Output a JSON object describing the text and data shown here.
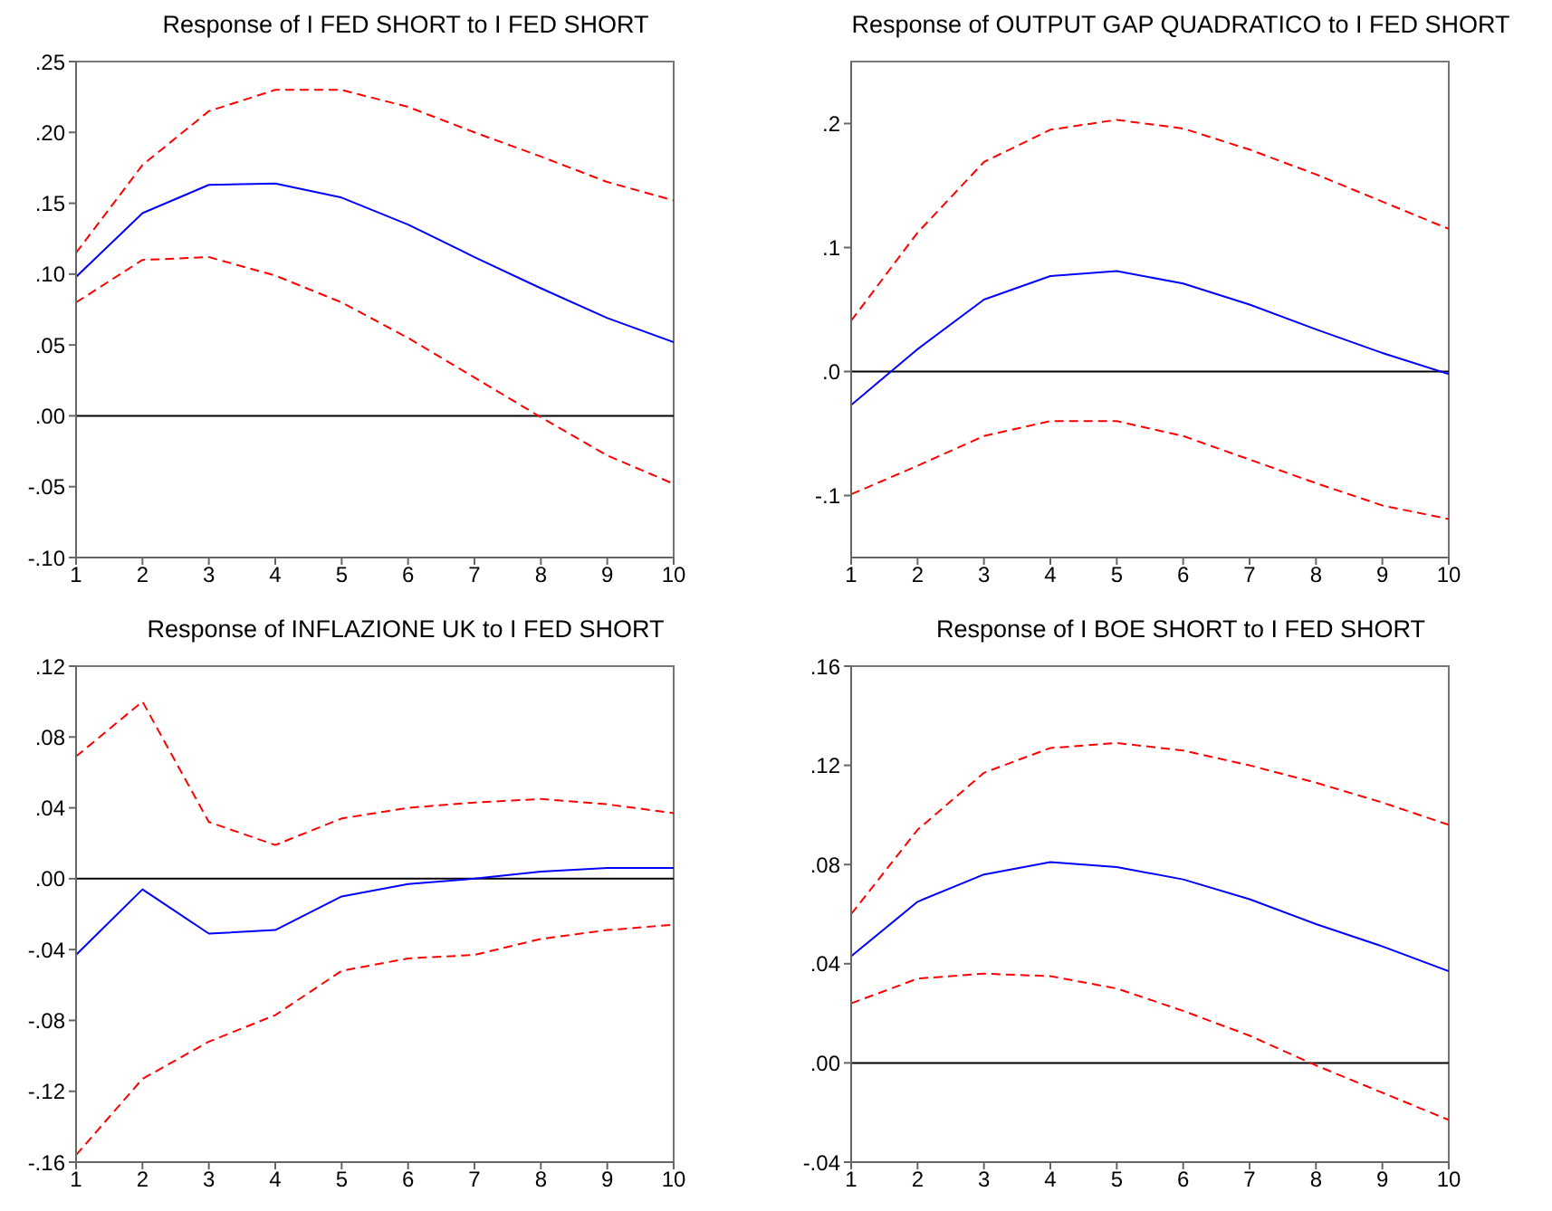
{
  "chart_data": [
    {
      "type": "line",
      "title": "Response of I FED SHORT to I FED SHORT",
      "x": [
        1,
        2,
        3,
        4,
        5,
        6,
        7,
        8,
        9,
        10
      ],
      "xlim": [
        1,
        10
      ],
      "xticks": [
        1,
        2,
        3,
        4,
        5,
        6,
        7,
        8,
        9,
        10
      ],
      "ylim": [
        -0.1,
        0.25
      ],
      "yticks": [
        {
          "value": -0.1,
          "label": "-.10"
        },
        {
          "value": -0.05,
          "label": "-.05"
        },
        {
          "value": 0,
          "label": ".00"
        },
        {
          "value": 0.05,
          "label": ".05"
        },
        {
          "value": 0.1,
          "label": ".10"
        },
        {
          "value": 0.15,
          "label": ".15"
        },
        {
          "value": 0.2,
          "label": ".20"
        },
        {
          "value": 0.25,
          "label": ".25"
        }
      ],
      "grid": false,
      "legend": false,
      "ref_lines": [
        {
          "axis": "y",
          "value": 0,
          "color": "#000000"
        }
      ],
      "series": [
        {
          "color": "#0000ff",
          "line_style": "solid",
          "values": [
            0.098,
            0.143,
            0.163,
            0.164,
            0.154,
            0.135,
            0.112,
            0.09,
            0.069,
            0.052
          ]
        },
        {
          "color": "#ff0000",
          "line_style": "dashed",
          "values": [
            0.115,
            0.177,
            0.215,
            0.23,
            0.23,
            0.218,
            0.2,
            0.183,
            0.165,
            0.152
          ]
        },
        {
          "color": "#ff0000",
          "line_style": "dashed",
          "values": [
            0.08,
            0.11,
            0.112,
            0.099,
            0.08,
            0.055,
            0.027,
            -0.001,
            -0.028,
            -0.048
          ]
        }
      ]
    },
    {
      "type": "line",
      "title": "Response of OUTPUT GAP QUADRATICO to I FED SHORT",
      "x": [
        1,
        2,
        3,
        4,
        5,
        6,
        7,
        8,
        9,
        10
      ],
      "xlim": [
        1,
        10
      ],
      "xticks": [
        1,
        2,
        3,
        4,
        5,
        6,
        7,
        8,
        9,
        10
      ],
      "ylim": [
        -0.15,
        0.25
      ],
      "yticks": [
        {
          "value": -0.1,
          "label": "-.1"
        },
        {
          "value": 0,
          "label": ".0"
        },
        {
          "value": 0.1,
          "label": ".1"
        },
        {
          "value": 0.2,
          "label": ".2"
        }
      ],
      "grid": false,
      "legend": false,
      "ref_lines": [
        {
          "axis": "y",
          "value": 0,
          "color": "#000000"
        }
      ],
      "series": [
        {
          "color": "#0000ff",
          "line_style": "solid",
          "values": [
            -0.027,
            0.018,
            0.058,
            0.077,
            0.081,
            0.071,
            0.054,
            0.034,
            0.015,
            -0.002
          ]
        },
        {
          "color": "#ff0000",
          "line_style": "dashed",
          "values": [
            0.041,
            0.112,
            0.169,
            0.195,
            0.203,
            0.196,
            0.179,
            0.159,
            0.137,
            0.115
          ]
        },
        {
          "color": "#ff0000",
          "line_style": "dashed",
          "values": [
            -0.099,
            -0.076,
            -0.052,
            -0.04,
            -0.04,
            -0.052,
            -0.071,
            -0.09,
            -0.108,
            -0.119
          ]
        }
      ]
    },
    {
      "type": "line",
      "title": "Response of INFLAZIONE UK to I FED SHORT",
      "x": [
        1,
        2,
        3,
        4,
        5,
        6,
        7,
        8,
        9,
        10
      ],
      "xlim": [
        1,
        10
      ],
      "xticks": [
        1,
        2,
        3,
        4,
        5,
        6,
        7,
        8,
        9,
        10
      ],
      "ylim": [
        -0.16,
        0.12
      ],
      "yticks": [
        {
          "value": -0.16,
          "label": "-.16"
        },
        {
          "value": -0.12,
          "label": "-.12"
        },
        {
          "value": -0.08,
          "label": "-.08"
        },
        {
          "value": -0.04,
          "label": "-.04"
        },
        {
          "value": 0,
          "label": ".00"
        },
        {
          "value": 0.04,
          "label": ".04"
        },
        {
          "value": 0.08,
          "label": ".08"
        },
        {
          "value": 0.12,
          "label": ".12"
        }
      ],
      "grid": false,
      "legend": false,
      "ref_lines": [
        {
          "axis": "y",
          "value": 0,
          "color": "#000000"
        }
      ],
      "series": [
        {
          "color": "#0000ff",
          "line_style": "solid",
          "values": [
            -0.043,
            -0.006,
            -0.031,
            -0.029,
            -0.01,
            -0.003,
            0.0,
            0.004,
            0.006,
            0.006
          ]
        },
        {
          "color": "#ff0000",
          "line_style": "dashed",
          "values": [
            0.069,
            0.1,
            0.032,
            0.019,
            0.034,
            0.04,
            0.043,
            0.045,
            0.042,
            0.037
          ]
        },
        {
          "color": "#ff0000",
          "line_style": "dashed",
          "values": [
            -0.156,
            -0.113,
            -0.092,
            -0.077,
            -0.052,
            -0.045,
            -0.043,
            -0.034,
            -0.029,
            -0.026
          ]
        }
      ]
    },
    {
      "type": "line",
      "title": "Response of I BOE SHORT to I FED SHORT",
      "x": [
        1,
        2,
        3,
        4,
        5,
        6,
        7,
        8,
        9,
        10
      ],
      "xlim": [
        1,
        10
      ],
      "xticks": [
        1,
        2,
        3,
        4,
        5,
        6,
        7,
        8,
        9,
        10
      ],
      "ylim": [
        -0.04,
        0.16
      ],
      "yticks": [
        {
          "value": -0.04,
          "label": "-.04"
        },
        {
          "value": 0,
          "label": ".00"
        },
        {
          "value": 0.04,
          "label": ".04"
        },
        {
          "value": 0.08,
          "label": ".08"
        },
        {
          "value": 0.12,
          "label": ".12"
        },
        {
          "value": 0.16,
          "label": ".16"
        }
      ],
      "grid": false,
      "legend": false,
      "ref_lines": [
        {
          "axis": "y",
          "value": 0,
          "color": "#000000"
        }
      ],
      "series": [
        {
          "color": "#0000ff",
          "line_style": "solid",
          "values": [
            0.043,
            0.065,
            0.076,
            0.081,
            0.079,
            0.074,
            0.066,
            0.056,
            0.047,
            0.037
          ]
        },
        {
          "color": "#ff0000",
          "line_style": "dashed",
          "values": [
            0.06,
            0.094,
            0.117,
            0.127,
            0.129,
            0.126,
            0.12,
            0.113,
            0.105,
            0.096
          ]
        },
        {
          "color": "#ff0000",
          "line_style": "dashed",
          "values": [
            0.024,
            0.034,
            0.036,
            0.035,
            0.03,
            0.021,
            0.011,
            -0.001,
            -0.012,
            -0.023
          ]
        }
      ]
    }
  ]
}
